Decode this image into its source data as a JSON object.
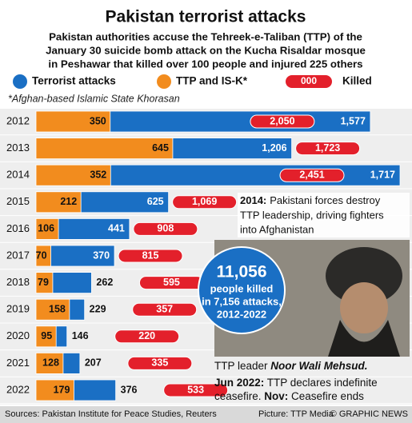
{
  "chart_data": {
    "type": "bar",
    "title": "Pakistan terrorist attacks",
    "subtitle": [
      "Pakistan authorities accuse the Tehreek-e-Taliban (TTP) of the",
      "January 30 suicide bomb attack on the Kucha Risaldar mosque",
      "in Peshawar that killed over 100 people and injured 225 others"
    ],
    "footnote": "*Afghan-based Islamic State Khorasan",
    "legend_sample": "000",
    "categories": [
      "2012",
      "2013",
      "2014",
      "2015",
      "2016",
      "2017",
      "2018",
      "2019",
      "2020",
      "2021",
      "2022"
    ],
    "series": [
      {
        "name": "Terrorist attacks",
        "color": "#1a6fc4",
        "values": [
          1577,
          1206,
          1717,
          625,
          441,
          370,
          262,
          229,
          146,
          207,
          376
        ],
        "value_labels": [
          "1,577",
          "1,206",
          "1,717",
          "625",
          "441",
          "370",
          "262",
          "229",
          "146",
          "207",
          "376"
        ]
      },
      {
        "name": "TTP and IS-K*",
        "color": "#f28c1e",
        "values": [
          350,
          645,
          352,
          212,
          106,
          70,
          79,
          158,
          95,
          128,
          179
        ]
      },
      {
        "name": "Killed",
        "color": "#e3202b",
        "values": [
          2050,
          1723,
          2451,
          1069,
          908,
          815,
          595,
          357,
          220,
          335,
          533
        ],
        "value_labels": [
          "2,050",
          "1,723",
          "2,451",
          "1,069",
          "908",
          "815",
          "595",
          "357",
          "220",
          "335",
          "533"
        ]
      }
    ],
    "annotations": {
      "note_2014": {
        "label": "2014:",
        "lines": [
          "Pakistani forces destroy",
          "TTP leadership, driving fighters",
          "into Afghanistan"
        ]
      },
      "total": {
        "number": "11,056",
        "lines": [
          "people killed",
          "in 7,156 attacks,",
          "2012-2022"
        ]
      },
      "caption": {
        "text": "TTP leader ",
        "name": "Noor Wali Mehsud."
      },
      "ceasefire": [
        [
          {
            "text": "Jun 2022:",
            "bold": true
          },
          {
            "text": " TTP declares indefinite",
            "bold": false
          }
        ],
        [
          {
            "text": "ceasefire. ",
            "bold": false
          },
          {
            "text": "Nov:",
            "bold": true
          },
          {
            "text": " Ceasefire ends",
            "bold": false
          }
        ]
      ]
    },
    "footer": {
      "sources": "Sources: Pakistan Institute for Peace Studies, Reuters",
      "picture": "Picture: TTP Media",
      "credit": "© GRAPHIC NEWS"
    }
  }
}
